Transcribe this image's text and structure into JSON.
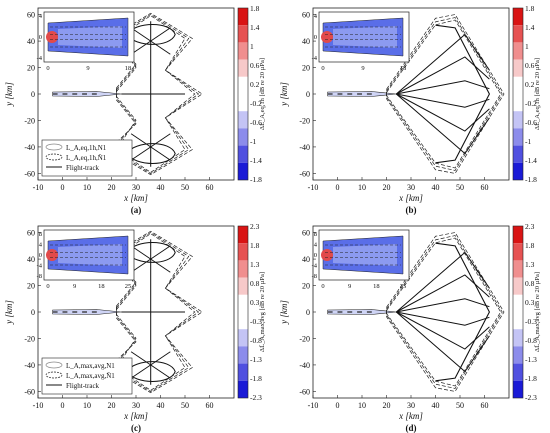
{
  "figure": {
    "panels": [
      {
        "label": "(a)",
        "colorbar_ticks": [
          "1.8",
          "1.4",
          "1",
          "0.6",
          "0.2",
          "-0.2",
          "-0.6",
          "-1",
          "-1.4",
          "-1.8"
        ],
        "colorbar_title": "ΔL̄_A,eq,1h [dB re 20 µPa]",
        "legend": [
          "L_A,eq,1h,N1",
          "L_A,eq,1h,N̄1",
          "Flight-track"
        ],
        "inset_xticks": [
          "0",
          "9",
          "18"
        ],
        "inset_yticks": [
          "4",
          "0",
          "-4"
        ],
        "track_variant": "loops"
      },
      {
        "label": "(b)",
        "colorbar_ticks": [
          "1.8",
          "1.4",
          "1",
          "0.6",
          "0.2",
          "-0.2",
          "-0.6",
          "-1",
          "-1.4",
          "-1.8"
        ],
        "colorbar_title": "ΔL̄_A,eq,1h [dB re 20 µPa]",
        "legend": [],
        "inset_xticks": [
          "0",
          "9",
          "18"
        ],
        "inset_yticks": [
          "4",
          "0",
          "-4"
        ],
        "track_variant": "fan"
      },
      {
        "label": "(c)",
        "colorbar_ticks": [
          "2.3",
          "1.8",
          "1.3",
          "0.8",
          "0.3",
          "-0.3",
          "-0.8",
          "-1.3",
          "-1.8",
          "-2.3"
        ],
        "colorbar_title": "ΔL̄_A,max,avg [dB re 20 µPa]",
        "legend": [
          "L_A,max,avg,N1",
          "L_A,max,avg,N̄1",
          "Flight-track"
        ],
        "inset_xticks": [
          "0",
          "9",
          "18",
          "25"
        ],
        "inset_yticks": [
          "8",
          "4",
          "0",
          "-4",
          "-8"
        ],
        "track_variant": "loops"
      },
      {
        "label": "(d)",
        "colorbar_ticks": [
          "2.3",
          "1.8",
          "1.3",
          "0.8",
          "0.3",
          "-0.3",
          "-0.8",
          "-1.3",
          "-1.8",
          "-2.3"
        ],
        "colorbar_title": "ΔL̄_A,max,avg [dB re 20 µPa]",
        "legend": [],
        "inset_xticks": [
          "0",
          "9",
          "18",
          "25"
        ],
        "inset_yticks": [
          "8",
          "4",
          "0",
          "-4",
          "-8"
        ],
        "track_variant": "fan"
      }
    ]
  },
  "chart_data": [
    {
      "type": "contour",
      "xlabel": "x [km]",
      "ylabel": "y [km]",
      "xlim": [
        -10,
        70
      ],
      "ylim": [
        -65,
        65
      ],
      "xticks": [
        -10,
        0,
        10,
        20,
        30,
        40,
        50,
        60
      ],
      "yticks": [
        60,
        40,
        20,
        0,
        -20,
        -40,
        -60
      ],
      "colorbar_range": [
        -1.8,
        1.8
      ],
      "legend": [
        "L_A,eq,1h,N1",
        "L_A,eq,1h,N̄1",
        "Flight-track"
      ]
    },
    {
      "type": "contour",
      "xlabel": "x [km]",
      "ylabel": "y [km]",
      "xlim": [
        -10,
        70
      ],
      "ylim": [
        -65,
        65
      ],
      "xticks": [
        -10,
        0,
        10,
        20,
        30,
        40,
        50,
        60
      ],
      "yticks": [
        60,
        40,
        20,
        0,
        -20,
        -40,
        -60
      ],
      "colorbar_range": [
        -1.8,
        1.8
      ]
    },
    {
      "type": "contour",
      "xlabel": "x [km]",
      "ylabel": "y [km]",
      "xlim": [
        -10,
        70
      ],
      "ylim": [
        -65,
        65
      ],
      "xticks": [
        -10,
        0,
        10,
        20,
        30,
        40,
        50,
        60
      ],
      "yticks": [
        60,
        40,
        20,
        0,
        -20,
        -40,
        -60
      ],
      "colorbar_range": [
        -2.3,
        2.3
      ],
      "legend": [
        "L_A,max,avg,N1",
        "L_A,max,avg,N̄1",
        "Flight-track"
      ]
    },
    {
      "type": "contour",
      "xlabel": "x [km]",
      "ylabel": "y [km]",
      "xlim": [
        -10,
        70
      ],
      "ylim": [
        -65,
        65
      ],
      "xticks": [
        -10,
        0,
        10,
        20,
        30,
        40,
        50,
        60
      ],
      "yticks": [
        60,
        40,
        20,
        0,
        -20,
        -40,
        -60
      ],
      "colorbar_range": [
        -2.3,
        2.3
      ]
    }
  ]
}
